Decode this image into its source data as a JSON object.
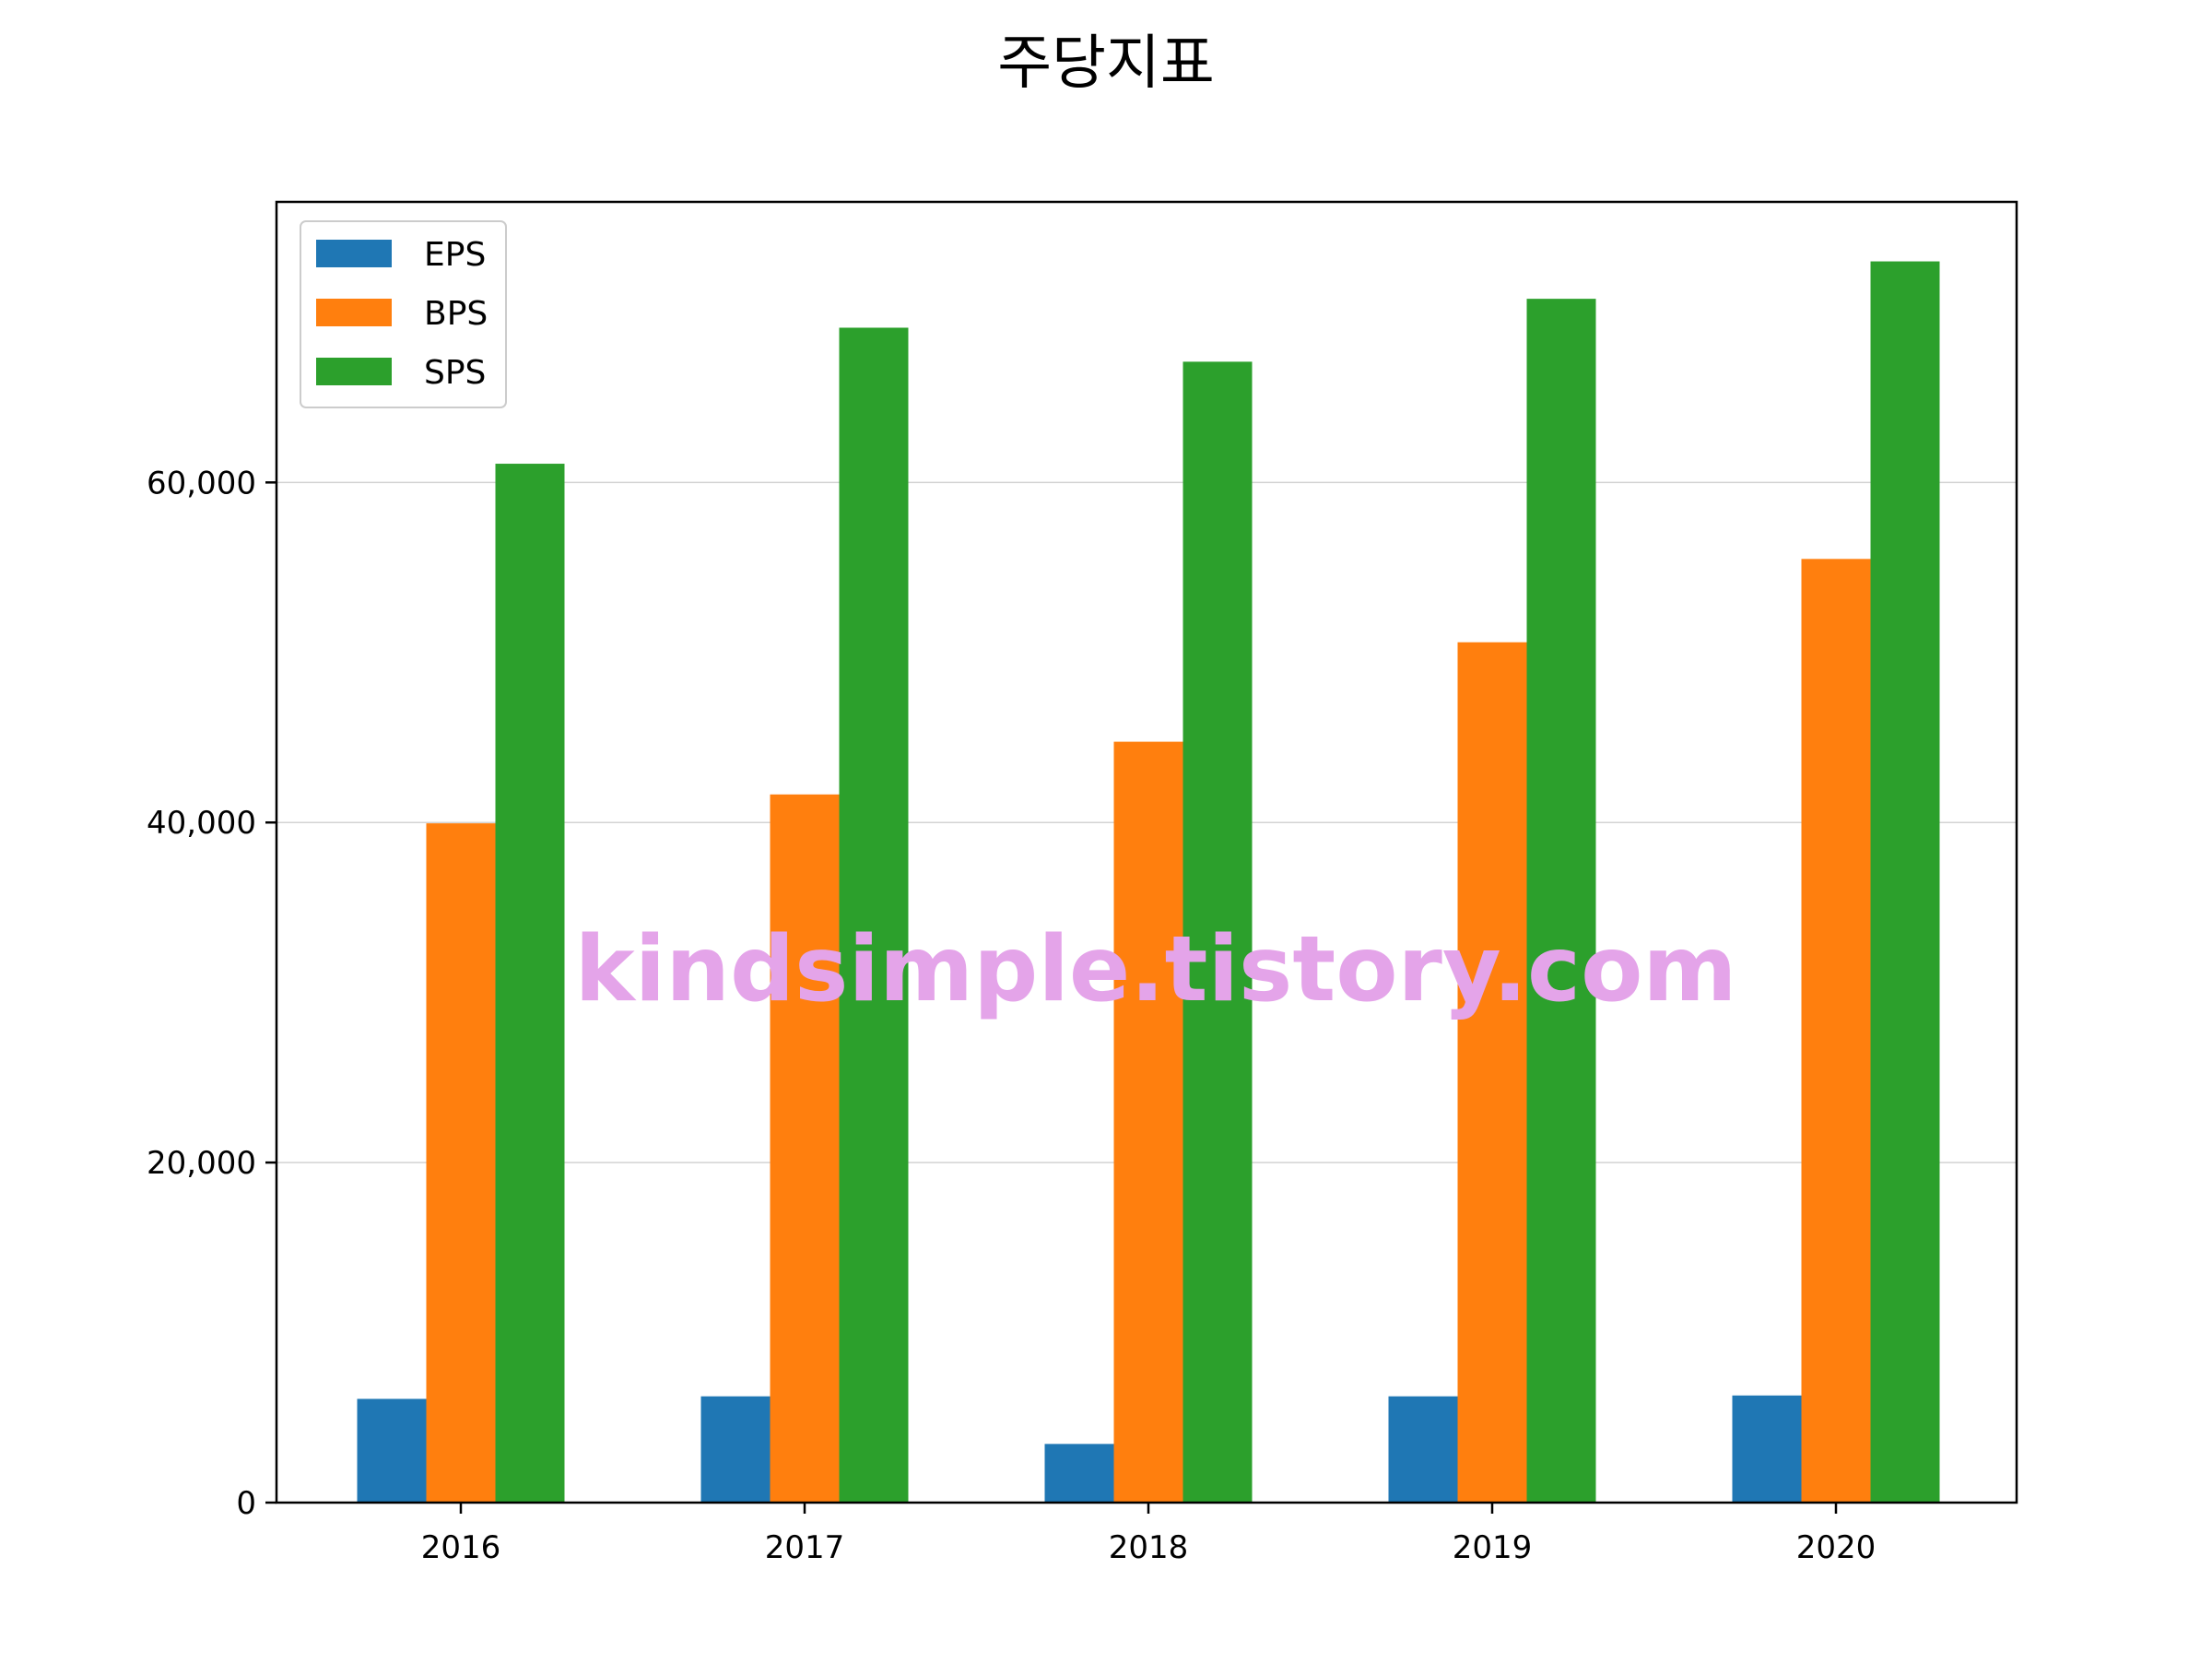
{
  "chart_data": {
    "type": "bar",
    "title": "주당지표",
    "xlabel": "",
    "ylabel": "",
    "categories": [
      "2016",
      "2017",
      "2018",
      "2019",
      "2020"
    ],
    "series": [
      {
        "name": "EPS",
        "color": "#1f77b4",
        "values": [
          6100,
          6250,
          3450,
          6250,
          6300
        ]
      },
      {
        "name": "BPS",
        "color": "#ff7f0e",
        "values": [
          39950,
          41650,
          44750,
          50600,
          55500
        ]
      },
      {
        "name": "SPS",
        "color": "#2ca02c",
        "values": [
          61100,
          69100,
          67100,
          70800,
          73000
        ]
      }
    ],
    "ylim": [
      0,
      76500
    ],
    "yticks": [
      0,
      20000,
      40000,
      60000
    ],
    "ytick_labels": [
      "0",
      "20,000",
      "40,000",
      "60,000"
    ],
    "grid": "horizontal",
    "legend_position": "top-left"
  },
  "watermark": "kindsimple.tistory.com",
  "watermark_color": "#e4a4e9"
}
